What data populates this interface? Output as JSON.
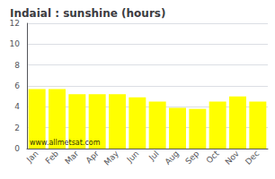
{
  "chart_data": {
    "type": "bar",
    "title": "Indaial : sunshine (hours)",
    "categories": [
      "Jan",
      "Feb",
      "Mar",
      "Apr",
      "May",
      "Jun",
      "Jul",
      "Aug",
      "Sep",
      "Oct",
      "Nov",
      "Dec"
    ],
    "values": [
      5.7,
      5.7,
      5.2,
      5.2,
      5.2,
      4.9,
      4.5,
      3.9,
      3.8,
      4.5,
      5.0,
      4.5
    ],
    "color": "#ffff00",
    "ylim": [
      0,
      12
    ],
    "yticks": [
      0,
      2,
      4,
      6,
      8,
      10,
      12
    ],
    "grid": true,
    "annotation": "www.allmetsat.com"
  }
}
